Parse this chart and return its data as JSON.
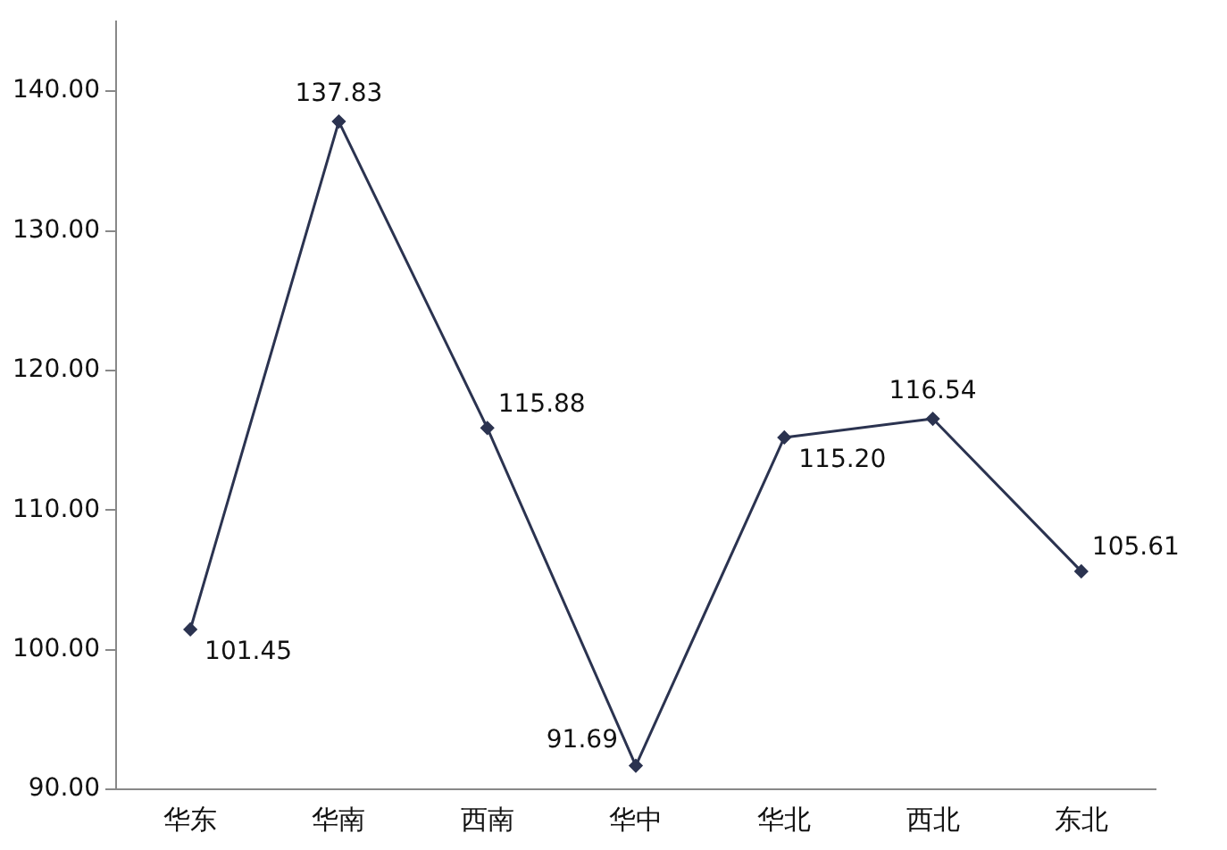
{
  "chart_data": {
    "type": "line",
    "categories": [
      "华东",
      "华南",
      "西南",
      "华中",
      "华北",
      "西北",
      "东北"
    ],
    "series": [
      {
        "color": "#2b3350",
        "values": [
          101.45,
          137.83,
          115.88,
          91.69,
          115.2,
          116.54,
          105.61
        ],
        "value_labels": [
          "101.45",
          "137.83",
          "115.88",
          "91.69",
          "115.20",
          "116.54",
          "105.61"
        ]
      }
    ],
    "ylim": [
      90,
      145
    ],
    "yticks": [
      {
        "value": 90,
        "label": "90.00"
      },
      {
        "value": 100,
        "label": "100.00"
      },
      {
        "value": 110,
        "label": "110.00"
      },
      {
        "value": 120,
        "label": "120.00"
      },
      {
        "value": 130,
        "label": "130.00"
      },
      {
        "value": 140,
        "label": "140.00"
      }
    ],
    "grid": false,
    "legend": false,
    "marker": "diamond",
    "line_style": "solid"
  }
}
